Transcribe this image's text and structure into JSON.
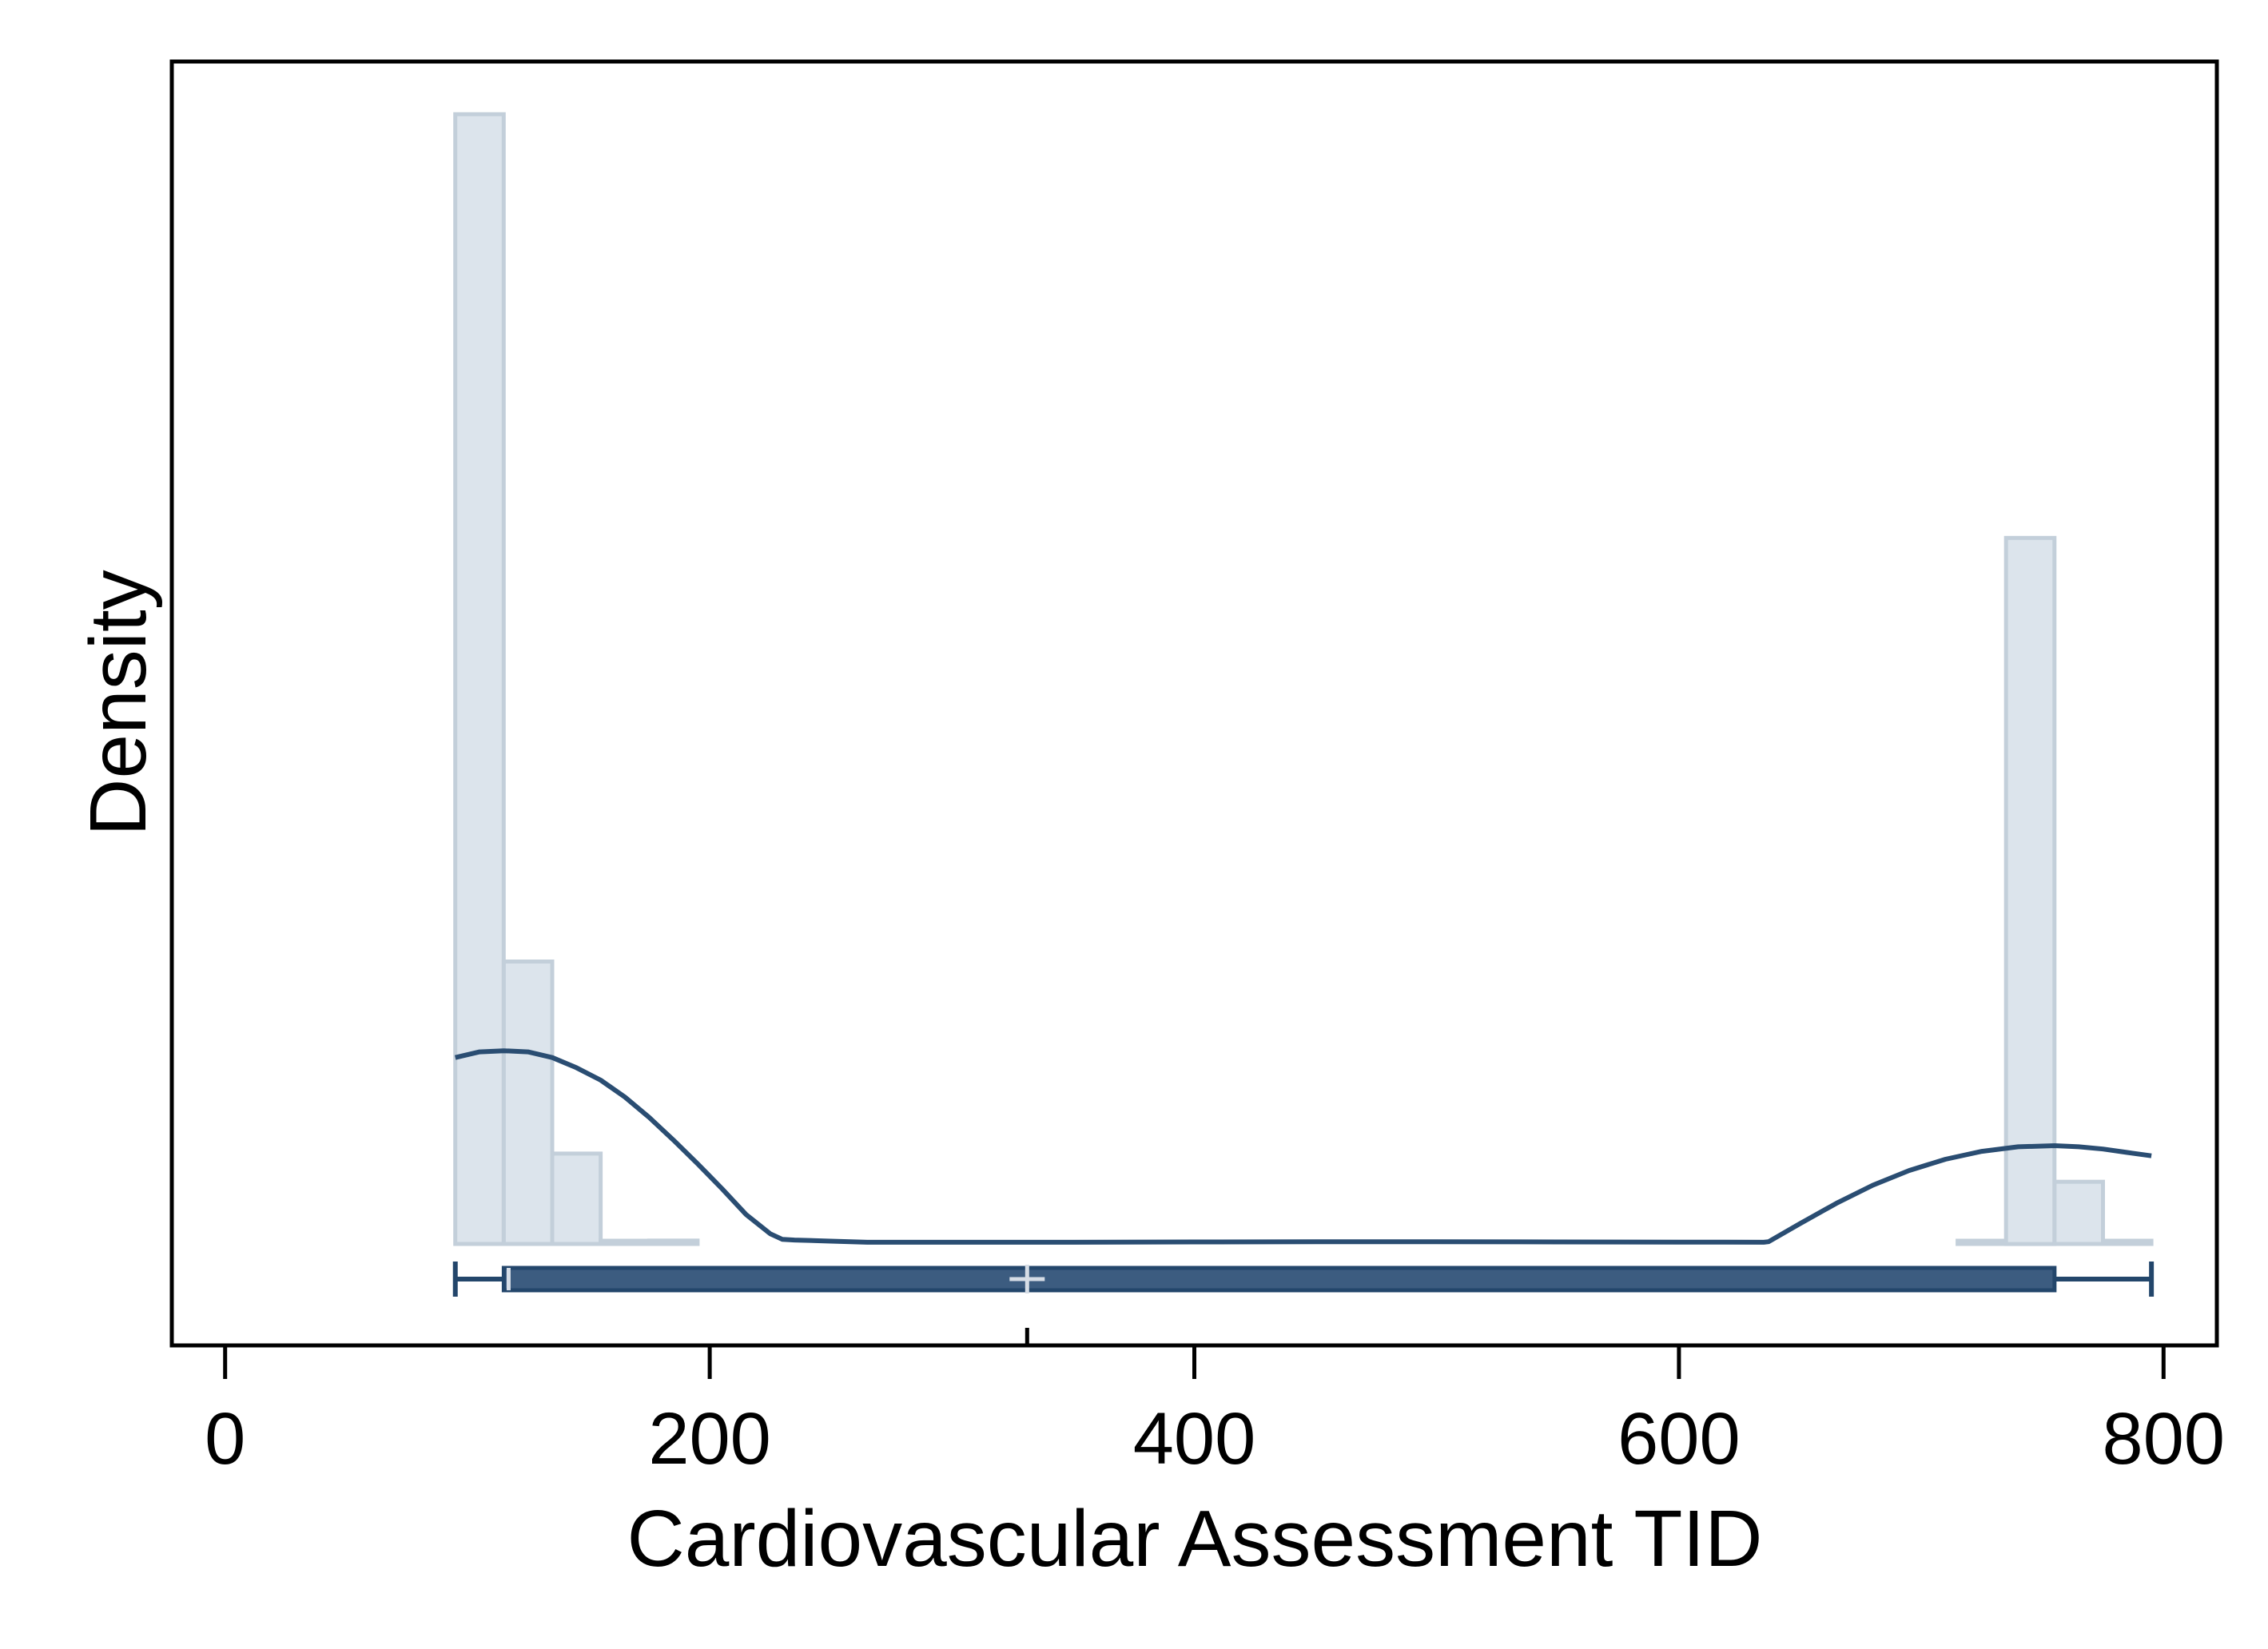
{
  "chart_data": {
    "type": "bar",
    "subtype": "histogram-with-kde-and-boxplot",
    "title": "",
    "xlabel": "Cardiovascular Assessment TID",
    "ylabel": "Density",
    "xlim": [
      -22,
      822
    ],
    "xticks": [
      0,
      200,
      400,
      600,
      800
    ],
    "ylim": [
      -0.1,
      1.05
    ],
    "y_ticks_shown": false,
    "grid": false,
    "colors": {
      "bar_fill": "#dce4ec",
      "bar_stroke": "#c3cfda",
      "kde_line": "#2a4d72",
      "box_fill": "#3c5c80",
      "box_stroke": "#23466b",
      "mean_marker": "#d6dde6",
      "axis": "#000000"
    },
    "histogram": {
      "bin_width": 20,
      "bins": [
        {
          "x0": 95,
          "x1": 115,
          "density": 1.0
        },
        {
          "x0": 115,
          "x1": 135,
          "density": 0.25
        },
        {
          "x0": 135,
          "x1": 155,
          "density": 0.08
        },
        {
          "x0": 155,
          "x1": 175,
          "density": 0.0
        },
        {
          "x0": 175,
          "x1": 195,
          "density": 0.003
        },
        {
          "x0": 715,
          "x1": 735,
          "density": 0.0
        },
        {
          "x0": 735,
          "x1": 755,
          "density": 0.625
        },
        {
          "x0": 755,
          "x1": 775,
          "density": 0.055
        },
        {
          "x0": 775,
          "x1": 795,
          "density": 0.0
        }
      ]
    },
    "kde": {
      "x": [
        95,
        105,
        115,
        125,
        135,
        145,
        155,
        165,
        175,
        185,
        195,
        205,
        215,
        225,
        230,
        235,
        250,
        265,
        300,
        350,
        400,
        450,
        500,
        550,
        600,
        635,
        637,
        650,
        665,
        680,
        695,
        710,
        725,
        740,
        755,
        765,
        775,
        785,
        795
      ],
      "y": [
        0.165,
        0.17,
        0.171,
        0.17,
        0.165,
        0.156,
        0.145,
        0.13,
        0.112,
        0.092,
        0.071,
        0.049,
        0.026,
        0.009,
        0.004,
        0.0035,
        0.0025,
        0.0015,
        0.0015,
        0.0015,
        0.0018,
        0.002,
        0.002,
        0.0018,
        0.0016,
        0.0015,
        0.002,
        0.018,
        0.036,
        0.052,
        0.065,
        0.075,
        0.082,
        0.086,
        0.087,
        0.086,
        0.084,
        0.081,
        0.078
      ]
    },
    "boxplot": {
      "min": 95,
      "q1": 115,
      "median": 117,
      "q3": 755,
      "max": 795,
      "mean": 331
    }
  }
}
